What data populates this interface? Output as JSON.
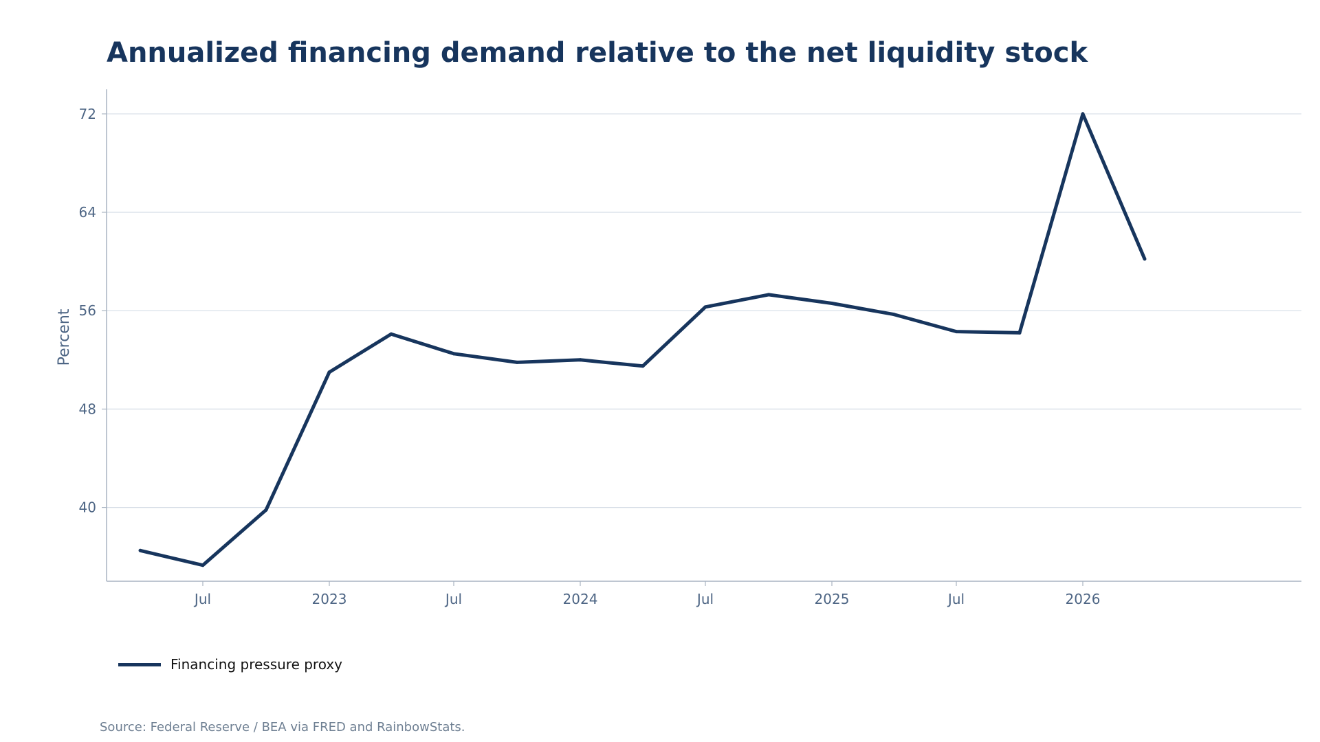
{
  "colors": {
    "line": "#17355d",
    "grid": "#d5dde6",
    "axis": "#a9b4c2",
    "tick_text": "#4d6584",
    "source_text": "#6e7f92"
  },
  "chart_data": {
    "type": "line",
    "title": "Annualized financing demand relative to the net liquidity stock",
    "xlabel": "",
    "ylabel": "Percent",
    "ylim": [
      34,
      74
    ],
    "yticks": [
      40,
      48,
      56,
      64,
      72
    ],
    "xlim": [
      "2022-02-11",
      "2026-11-15"
    ],
    "xticks": [
      {
        "date": "2022-07-01",
        "label": "Jul"
      },
      {
        "date": "2023-01-01",
        "label": "2023"
      },
      {
        "date": "2023-07-01",
        "label": "Jul"
      },
      {
        "date": "2024-01-01",
        "label": "2024"
      },
      {
        "date": "2024-07-01",
        "label": "Jul"
      },
      {
        "date": "2025-01-01",
        "label": "2025"
      },
      {
        "date": "2025-07-01",
        "label": "Jul"
      },
      {
        "date": "2026-01-01",
        "label": "2026"
      }
    ],
    "grid": "horizontal",
    "legend_position": "bottom-left",
    "series": [
      {
        "name": "Financing pressure proxy",
        "x": [
          "2022-04-01",
          "2022-07-01",
          "2022-10-01",
          "2023-01-01",
          "2023-04-01",
          "2023-07-01",
          "2023-10-01",
          "2024-01-01",
          "2024-04-01",
          "2024-07-01",
          "2024-10-01",
          "2025-01-01",
          "2025-04-01",
          "2025-07-01",
          "2025-10-01",
          "2026-01-01",
          "2026-04-01"
        ],
        "values": [
          36.5,
          35.3,
          39.8,
          51.0,
          54.1,
          52.5,
          51.8,
          52.0,
          51.5,
          56.3,
          57.3,
          56.6,
          55.7,
          54.3,
          54.2,
          72.0,
          60.2
        ]
      }
    ]
  },
  "legend": {
    "label": "Financing pressure proxy"
  },
  "source": "Source: Federal Reserve / BEA via FRED and RainbowStats."
}
